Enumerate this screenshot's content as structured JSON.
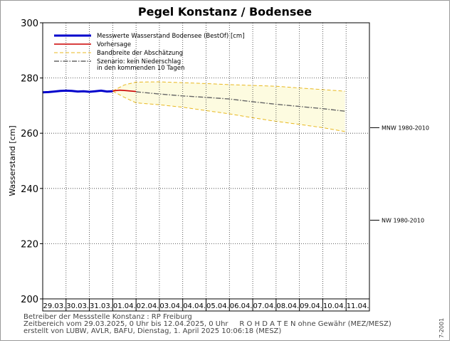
{
  "chart_data": {
    "type": "line",
    "title": "Pegel Konstanz / Bodensee",
    "ylabel": "Wasserstand [cm]",
    "xlabel": "",
    "ylim": [
      200,
      300
    ],
    "yticks": [
      200,
      220,
      240,
      260,
      280,
      300
    ],
    "x_categories": [
      "29.03.",
      "30.03.",
      "31.03.",
      "01.04.",
      "02.04.",
      "03.04.",
      "04.04.",
      "05.04.",
      "06.04.",
      "07.04.",
      "08.04.",
      "09.04.",
      "10.04.",
      "11.04."
    ],
    "grid": true,
    "legend_position": "top-left",
    "legend": [
      {
        "label": "Messwerte Wasserstand Bodensee  (BestOf)  [cm]",
        "color": "#0000cc",
        "style": "solid-thick"
      },
      {
        "label": "Vorhersage",
        "color": "#cc0000",
        "style": "solid"
      },
      {
        "label": "Bandbreite der Abschätzung",
        "color": "#e8b820",
        "style": "dashed"
      },
      {
        "label": "Szenario: kein Niederschlag",
        "label2": "in den kommenden 10 Tagen",
        "color": "#666666",
        "style": "dashdot"
      }
    ],
    "series": [
      {
        "name": "Messwerte Wasserstand Bodensee  (BestOf)  [cm]",
        "color": "#0000cc",
        "x": [
          0,
          0.25,
          0.5,
          0.75,
          1.0,
          1.25,
          1.5,
          1.75,
          2.0,
          2.25,
          2.5,
          2.75,
          3.0
        ],
        "values": [
          274.8,
          274.9,
          275.1,
          275.3,
          275.4,
          275.3,
          275.1,
          275.2,
          275.0,
          275.2,
          275.4,
          275.1,
          275.2
        ]
      },
      {
        "name": "Vorhersage",
        "color": "#cc0000",
        "x": [
          3.0,
          3.3,
          3.6,
          4.0
        ],
        "values": [
          275.3,
          275.6,
          275.4,
          275.1
        ]
      },
      {
        "name": "Szenario: kein Niederschlag",
        "color": "#666666",
        "x": [
          4.0,
          5.0,
          6.0,
          7.0,
          8.0,
          9.0,
          10.0,
          11.0,
          12.0,
          12.95
        ],
        "values": [
          275.0,
          274.2,
          273.5,
          273.0,
          272.4,
          271.4,
          270.5,
          269.7,
          268.9,
          268.0
        ]
      }
    ],
    "band": {
      "name": "Bandbreite der Abschätzung",
      "color": "#e8b820",
      "fill": "#fdfbe0",
      "x": [
        3.0,
        3.5,
        4.0,
        5.0,
        6.0,
        7.0,
        8.0,
        9.0,
        10.0,
        11.0,
        12.0,
        12.95
      ],
      "upper": [
        275.3,
        277.5,
        278.5,
        278.6,
        278.3,
        278.0,
        277.6,
        277.3,
        277.0,
        276.4,
        275.8,
        275.2
      ],
      "lower": [
        275.2,
        273.0,
        271.0,
        270.3,
        269.4,
        268.2,
        267.0,
        265.6,
        264.3,
        263.2,
        262.0,
        260.6
      ]
    },
    "reference_lines": [
      {
        "label": "MNW 1980-2010",
        "value": 262.0
      },
      {
        "label": "NW 1980-2010",
        "value": 228.5
      }
    ]
  },
  "footer": {
    "line1": "Betreiber der Messstelle Konstanz : RP Freiburg",
    "line2": "Zeitbereich vom 29.03.2025, 0 Uhr bis 12.04.2025, 0 Uhr     R O H D A T E N ohne Gewähr (MEZ/MESZ)",
    "line3": "erstellt von LUBW, AVLR, BAFU, Dienstag, 1. April 2025 10:06:18 (MESZ)"
  },
  "side_code": "7-2001"
}
